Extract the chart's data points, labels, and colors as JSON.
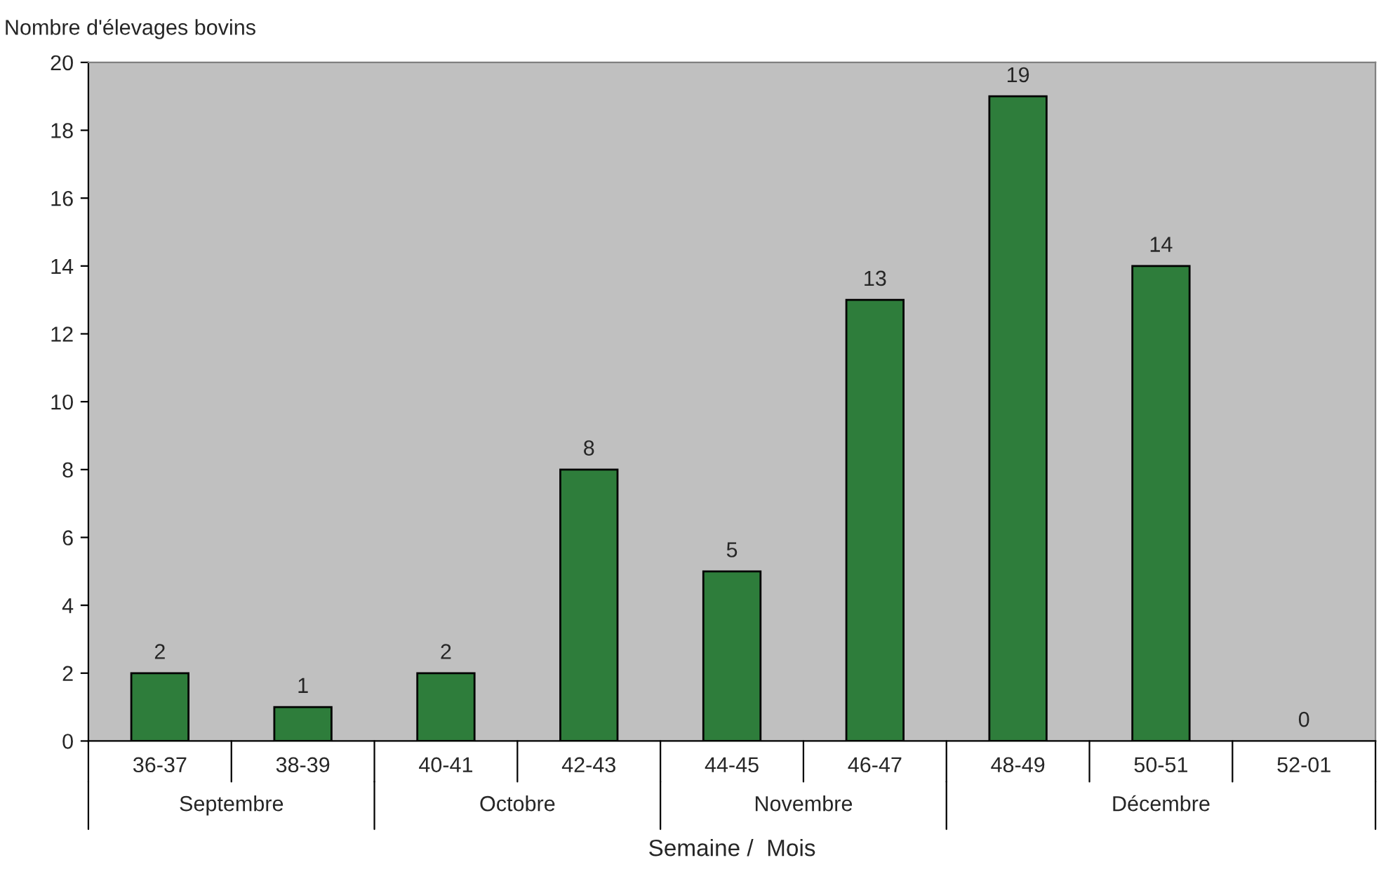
{
  "chart_data": {
    "type": "bar",
    "ylabel": "Nombre d'élevages bovins",
    "xlabel": "Semaine /  Mois",
    "categories": [
      "36-37",
      "38-39",
      "40-41",
      "42-43",
      "44-45",
      "46-47",
      "48-49",
      "50-51",
      "52-01"
    ],
    "values": [
      2,
      1,
      2,
      8,
      5,
      13,
      19,
      14,
      0
    ],
    "color": "#2e7d3b",
    "ylim": [
      0,
      20
    ],
    "yticks": [
      0,
      2,
      4,
      6,
      8,
      10,
      12,
      14,
      16,
      18,
      20
    ],
    "data_labels": true,
    "grid": false,
    "annotations": [
      "Septembre",
      "Octobre",
      "Novembre",
      "Décembre"
    ]
  }
}
